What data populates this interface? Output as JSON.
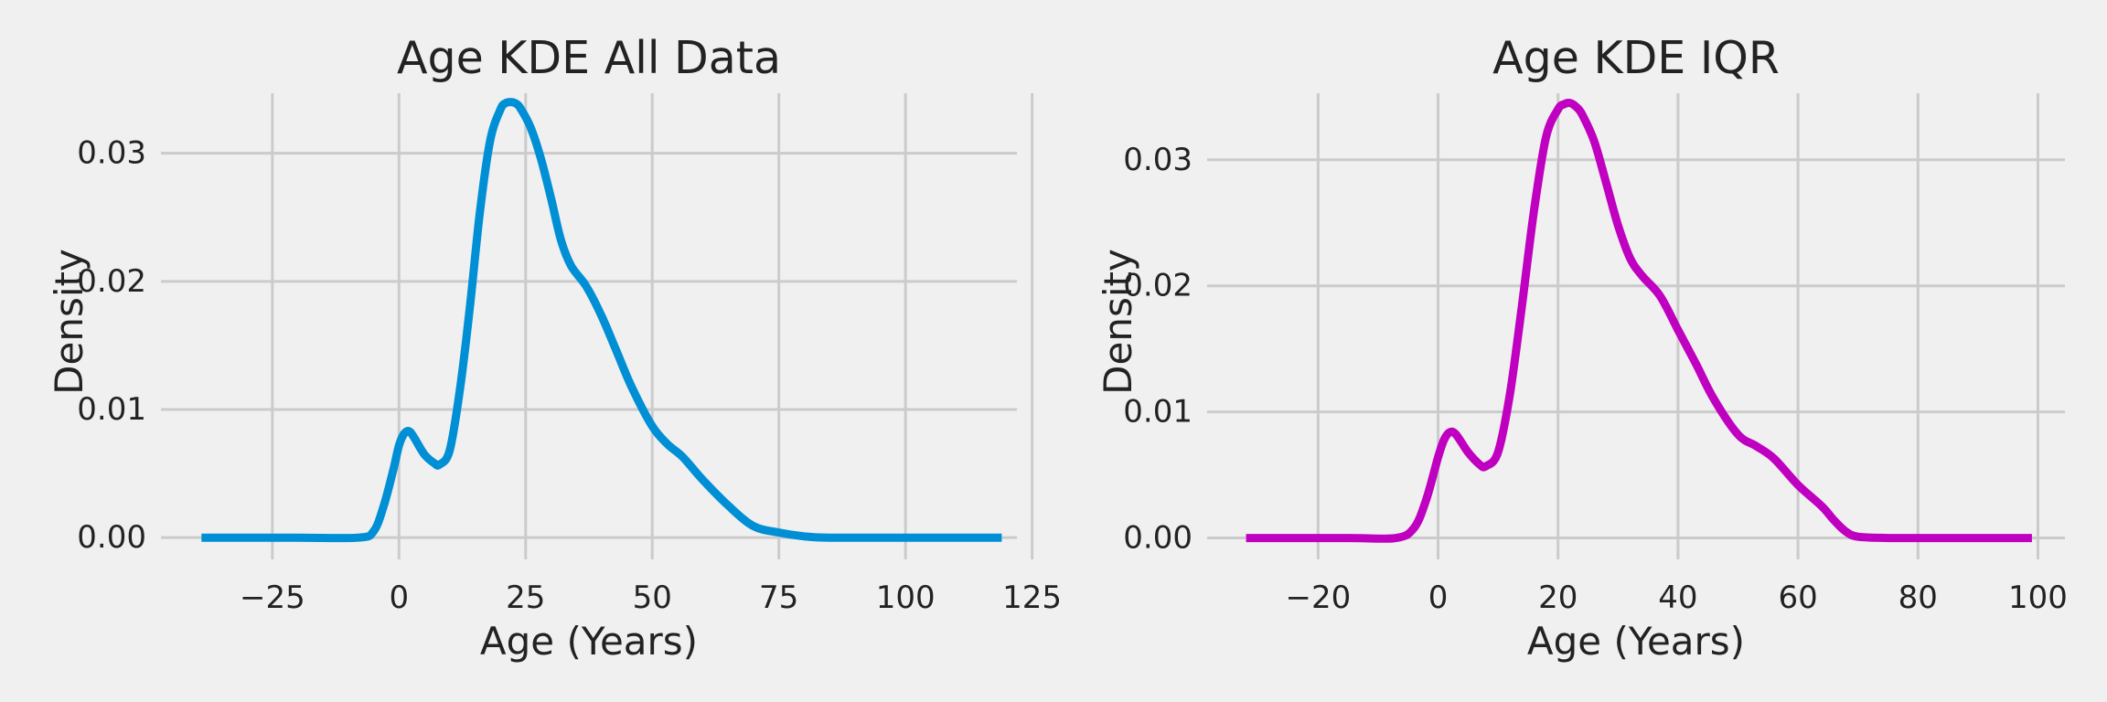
{
  "chart_data": [
    {
      "type": "line",
      "title": "Age KDE All Data",
      "xlabel": "Age (Years)",
      "ylabel": "Density",
      "xlim": [
        -47,
        122
      ],
      "ylim": [
        -0.0017,
        0.0354
      ],
      "xticks": [
        -25,
        0,
        25,
        50,
        75,
        100,
        125
      ],
      "xtick_labels": [
        "−25",
        "0",
        "25",
        "50",
        "75",
        "100",
        "125"
      ],
      "yticks": [
        0.0,
        0.01,
        0.02,
        0.03
      ],
      "ytick_labels": [
        "0.00",
        "0.01",
        "0.02",
        "0.03"
      ],
      "grid": true,
      "color": "#008fd5",
      "series": [
        {
          "x": [
            -39,
            -20,
            -8,
            -5,
            -3,
            -1,
            0,
            1,
            2,
            3,
            5,
            7,
            8,
            10,
            12,
            14,
            16,
            18,
            20,
            21,
            22,
            23,
            24,
            26,
            28,
            30,
            32,
            34,
            37,
            40,
            43,
            46,
            50,
            53,
            56,
            60,
            65,
            70,
            75,
            80,
            85,
            100,
            119
          ],
          "y": [
            0.0,
            0.0,
            0.0,
            0.0005,
            0.0025,
            0.0055,
            0.0072,
            0.0081,
            0.0083,
            0.0078,
            0.0065,
            0.0058,
            0.0057,
            0.0068,
            0.0115,
            0.018,
            0.0255,
            0.031,
            0.0334,
            0.0339,
            0.034,
            0.0339,
            0.0335,
            0.032,
            0.0296,
            0.0265,
            0.0232,
            0.0212,
            0.0196,
            0.0173,
            0.0145,
            0.0117,
            0.0087,
            0.0073,
            0.0063,
            0.0045,
            0.0025,
            0.0009,
            0.0004,
            0.0001,
            0.0,
            0.0,
            0.0
          ]
        }
      ]
    },
    {
      "type": "line",
      "title": "Age KDE IQR",
      "xlabel": "Age (Years)",
      "ylabel": "Density",
      "xlim": [
        -38.5,
        104.5
      ],
      "ylim": [
        -0.0017,
        0.036
      ],
      "xticks": [
        -20,
        0,
        20,
        40,
        60,
        80,
        100
      ],
      "xtick_labels": [
        "−20",
        "0",
        "20",
        "40",
        "60",
        "80",
        "100"
      ],
      "yticks": [
        0.0,
        0.01,
        0.02,
        0.03
      ],
      "ytick_labels": [
        "0.00",
        "0.01",
        "0.02",
        "0.03"
      ],
      "grid": true,
      "color": "#c000c0",
      "series": [
        {
          "x": [
            -32,
            -15,
            -7,
            -4,
            -2,
            0,
            1,
            2,
            3,
            5,
            7,
            8,
            10,
            12,
            14,
            16,
            18,
            20,
            21,
            22,
            23,
            24,
            26,
            28,
            30,
            32,
            34,
            37,
            40,
            43,
            46,
            50,
            53,
            56,
            60,
            64,
            66,
            68,
            70,
            75,
            80,
            99
          ],
          "y": [
            0.0,
            0.0,
            0.0,
            0.0008,
            0.003,
            0.0064,
            0.0078,
            0.0084,
            0.0082,
            0.0068,
            0.0058,
            0.0057,
            0.0068,
            0.0115,
            0.0185,
            0.026,
            0.0318,
            0.034,
            0.0344,
            0.0345,
            0.0342,
            0.0336,
            0.0315,
            0.0282,
            0.0248,
            0.0222,
            0.0208,
            0.0192,
            0.0165,
            0.0138,
            0.011,
            0.0082,
            0.0073,
            0.0063,
            0.0042,
            0.0025,
            0.0014,
            0.0005,
            0.0001,
            0.0,
            0.0,
            0.0
          ]
        }
      ]
    }
  ]
}
